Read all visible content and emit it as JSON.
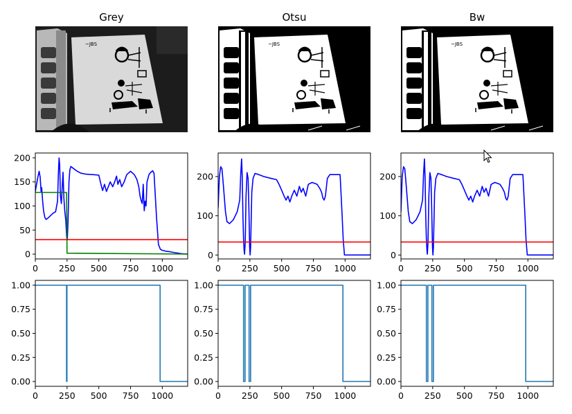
{
  "image_panels": [
    {
      "title": "Grey",
      "variant": "grey"
    },
    {
      "title": "Otsu",
      "variant": "binary"
    },
    {
      "title": "Bw",
      "variant": "binary"
    }
  ],
  "colors": {
    "profile": "#0000ff",
    "threshold": "#ff0000",
    "green_profile": "#008000",
    "mask": "#1f77b4"
  },
  "chart_data": [
    {
      "type": "line",
      "panel": "Grey profile",
      "xlim": [
        0,
        1200
      ],
      "ylim": [
        -10,
        210
      ],
      "xticks": [
        0,
        250,
        500,
        750,
        1000
      ],
      "yticks": [
        0,
        50,
        100,
        150,
        200
      ],
      "series": [
        {
          "color": "#0000ff",
          "points": [
            [
              0,
              130
            ],
            [
              10,
              145
            ],
            [
              20,
              160
            ],
            [
              30,
              172
            ],
            [
              38,
              160
            ],
            [
              45,
              130
            ],
            [
              50,
              138
            ],
            [
              58,
              110
            ],
            [
              65,
              90
            ],
            [
              75,
              76
            ],
            [
              85,
              72
            ],
            [
              100,
              75
            ],
            [
              120,
              80
            ],
            [
              140,
              85
            ],
            [
              160,
              88
            ],
            [
              175,
              110
            ],
            [
              182,
              170
            ],
            [
              187,
              200
            ],
            [
              192,
              185
            ],
            [
              198,
              120
            ],
            [
              205,
              105
            ],
            [
              212,
              140
            ],
            [
              218,
              170
            ],
            [
              225,
              115
            ],
            [
              232,
              90
            ],
            [
              240,
              70
            ],
            [
              247,
              35
            ],
            [
              252,
              30
            ],
            [
              258,
              70
            ],
            [
              265,
              150
            ],
            [
              272,
              175
            ],
            [
              280,
              182
            ],
            [
              300,
              178
            ],
            [
              330,
              172
            ],
            [
              360,
              168
            ],
            [
              400,
              166
            ],
            [
              460,
              165
            ],
            [
              500,
              164
            ],
            [
              520,
              142
            ],
            [
              530,
              132
            ],
            [
              545,
              145
            ],
            [
              560,
              130
            ],
            [
              575,
              140
            ],
            [
              590,
              150
            ],
            [
              610,
              140
            ],
            [
              625,
              150
            ],
            [
              640,
              162
            ],
            [
              650,
              145
            ],
            [
              665,
              155
            ],
            [
              680,
              140
            ],
            [
              700,
              150
            ],
            [
              720,
              165
            ],
            [
              750,
              172
            ],
            [
              780,
              165
            ],
            [
              800,
              155
            ],
            [
              815,
              140
            ],
            [
              825,
              120
            ],
            [
              835,
              110
            ],
            [
              842,
              105
            ],
            [
              850,
              145
            ],
            [
              858,
              90
            ],
            [
              865,
              110
            ],
            [
              872,
              100
            ],
            [
              880,
              150
            ],
            [
              895,
              165
            ],
            [
              910,
              170
            ],
            [
              925,
              173
            ],
            [
              935,
              168
            ],
            [
              945,
              120
            ],
            [
              955,
              75
            ],
            [
              970,
              20
            ],
            [
              985,
              10
            ],
            [
              1000,
              8
            ],
            [
              1030,
              6
            ],
            [
              1060,
              5
            ],
            [
              1100,
              3
            ],
            [
              1150,
              1
            ],
            [
              1200,
              0
            ]
          ]
        },
        {
          "color": "#008000",
          "points": [
            [
              0,
              128
            ],
            [
              246,
              128
            ],
            [
              250,
              2
            ],
            [
              1200,
              0
            ]
          ]
        },
        {
          "color": "#ff0000",
          "points": [
            [
              0,
              30
            ],
            [
              1200,
              30
            ]
          ]
        }
      ]
    },
    {
      "type": "line",
      "panel": "Otsu profile",
      "xlim": [
        0,
        1200
      ],
      "ylim": [
        -10,
        260
      ],
      "xticks": [
        0,
        250,
        500,
        750,
        1000
      ],
      "yticks": [
        0,
        100,
        200
      ],
      "series": [
        {
          "color": "#0000ff",
          "points": [
            [
              0,
              120
            ],
            [
              10,
              200
            ],
            [
              20,
              225
            ],
            [
              30,
              220
            ],
            [
              38,
              190
            ],
            [
              48,
              150
            ],
            [
              58,
              110
            ],
            [
              70,
              85
            ],
            [
              90,
              80
            ],
            [
              120,
              90
            ],
            [
              150,
              110
            ],
            [
              170,
              140
            ],
            [
              178,
              205
            ],
            [
              185,
              245
            ],
            [
              190,
              200
            ],
            [
              195,
              100
            ],
            [
              200,
              40
            ],
            [
              205,
              10
            ],
            [
              208,
              2
            ],
            [
              213,
              30
            ],
            [
              220,
              150
            ],
            [
              228,
              210
            ],
            [
              236,
              195
            ],
            [
              242,
              120
            ],
            [
              248,
              20
            ],
            [
              252,
              0
            ],
            [
              256,
              20
            ],
            [
              265,
              160
            ],
            [
              275,
              195
            ],
            [
              290,
              208
            ],
            [
              320,
              205
            ],
            [
              360,
              200
            ],
            [
              420,
              195
            ],
            [
              460,
              192
            ],
            [
              480,
              180
            ],
            [
              500,
              165
            ],
            [
              520,
              150
            ],
            [
              535,
              140
            ],
            [
              550,
              150
            ],
            [
              565,
              135
            ],
            [
              580,
              150
            ],
            [
              600,
              165
            ],
            [
              620,
              150
            ],
            [
              640,
              175
            ],
            [
              655,
              160
            ],
            [
              670,
              170
            ],
            [
              690,
              150
            ],
            [
              710,
              180
            ],
            [
              740,
              185
            ],
            [
              780,
              180
            ],
            [
              800,
              170
            ],
            [
              815,
              160
            ],
            [
              825,
              145
            ],
            [
              835,
              140
            ],
            [
              845,
              150
            ],
            [
              860,
              195
            ],
            [
              880,
              205
            ],
            [
              920,
              205
            ],
            [
              960,
              205
            ],
            [
              962,
              195
            ],
            [
              975,
              110
            ],
            [
              985,
              40
            ],
            [
              995,
              0
            ],
            [
              1200,
              0
            ]
          ]
        },
        {
          "color": "#ff0000",
          "points": [
            [
              0,
              33
            ],
            [
              1200,
              33
            ]
          ]
        }
      ]
    },
    {
      "type": "line",
      "panel": "Bw profile",
      "xlim": [
        0,
        1200
      ],
      "ylim": [
        -10,
        260
      ],
      "xticks": [
        0,
        250,
        500,
        750,
        1000
      ],
      "yticks": [
        0,
        100,
        200
      ],
      "series": [
        {
          "color": "#0000ff",
          "points": [
            [
              0,
              110
            ],
            [
              10,
              200
            ],
            [
              20,
              225
            ],
            [
              30,
              220
            ],
            [
              38,
              190
            ],
            [
              48,
              150
            ],
            [
              58,
              110
            ],
            [
              70,
              85
            ],
            [
              90,
              80
            ],
            [
              120,
              90
            ],
            [
              150,
              110
            ],
            [
              170,
              140
            ],
            [
              178,
              205
            ],
            [
              185,
              245
            ],
            [
              190,
              200
            ],
            [
              195,
              100
            ],
            [
              200,
              40
            ],
            [
              205,
              10
            ],
            [
              208,
              2
            ],
            [
              213,
              30
            ],
            [
              220,
              150
            ],
            [
              228,
              210
            ],
            [
              236,
              195
            ],
            [
              242,
              120
            ],
            [
              248,
              20
            ],
            [
              252,
              0
            ],
            [
              256,
              20
            ],
            [
              265,
              160
            ],
            [
              275,
              195
            ],
            [
              290,
              208
            ],
            [
              320,
              205
            ],
            [
              360,
              200
            ],
            [
              420,
              195
            ],
            [
              460,
              192
            ],
            [
              480,
              180
            ],
            [
              500,
              165
            ],
            [
              520,
              150
            ],
            [
              535,
              140
            ],
            [
              550,
              150
            ],
            [
              565,
              135
            ],
            [
              580,
              150
            ],
            [
              600,
              165
            ],
            [
              620,
              150
            ],
            [
              640,
              175
            ],
            [
              655,
              160
            ],
            [
              670,
              170
            ],
            [
              690,
              150
            ],
            [
              710,
              180
            ],
            [
              740,
              185
            ],
            [
              780,
              180
            ],
            [
              800,
              170
            ],
            [
              815,
              160
            ],
            [
              825,
              145
            ],
            [
              835,
              140
            ],
            [
              845,
              150
            ],
            [
              860,
              195
            ],
            [
              880,
              205
            ],
            [
              920,
              205
            ],
            [
              960,
              205
            ],
            [
              962,
              195
            ],
            [
              975,
              110
            ],
            [
              985,
              40
            ],
            [
              995,
              0
            ],
            [
              1200,
              0
            ]
          ]
        },
        {
          "color": "#ff0000",
          "points": [
            [
              0,
              33
            ],
            [
              1200,
              33
            ]
          ]
        }
      ]
    },
    {
      "type": "line",
      "panel": "Grey mask",
      "xlim": [
        0,
        1200
      ],
      "ylim": [
        -0.05,
        1.05
      ],
      "xticks": [
        0,
        250,
        500,
        750,
        1000
      ],
      "yticks": [
        0.0,
        0.25,
        0.5,
        0.75,
        1.0
      ],
      "series": [
        {
          "color": "#1f77b4",
          "points": [
            [
              0,
              1
            ],
            [
              246,
              1
            ],
            [
              246,
              0
            ],
            [
              249,
              0
            ],
            [
              249,
              1
            ],
            [
              983,
              1
            ],
            [
              983,
              0
            ],
            [
              1200,
              0
            ]
          ]
        }
      ]
    },
    {
      "type": "line",
      "panel": "Otsu mask",
      "xlim": [
        0,
        1200
      ],
      "ylim": [
        -0.05,
        1.05
      ],
      "xticks": [
        0,
        250,
        500,
        750,
        1000
      ],
      "yticks": [
        0.0,
        0.25,
        0.5,
        0.75,
        1.0
      ],
      "series": [
        {
          "color": "#1f77b4",
          "points": [
            [
              0,
              1
            ],
            [
              200,
              1
            ],
            [
              200,
              0
            ],
            [
              212,
              0
            ],
            [
              212,
              1
            ],
            [
              244,
              1
            ],
            [
              244,
              0
            ],
            [
              256,
              0
            ],
            [
              256,
              1
            ],
            [
              983,
              1
            ],
            [
              983,
              0
            ],
            [
              1200,
              0
            ]
          ]
        }
      ]
    },
    {
      "type": "line",
      "panel": "Bw mask",
      "xlim": [
        0,
        1200
      ],
      "ylim": [
        -0.05,
        1.05
      ],
      "xticks": [
        0,
        250,
        500,
        750,
        1000
      ],
      "yticks": [
        0.0,
        0.25,
        0.5,
        0.75,
        1.0
      ],
      "series": [
        {
          "color": "#1f77b4",
          "points": [
            [
              0,
              1
            ],
            [
              200,
              1
            ],
            [
              200,
              0
            ],
            [
              212,
              0
            ],
            [
              212,
              1
            ],
            [
              244,
              1
            ],
            [
              244,
              0
            ],
            [
              256,
              0
            ],
            [
              256,
              1
            ],
            [
              983,
              1
            ],
            [
              983,
              0
            ],
            [
              1200,
              0
            ]
          ]
        }
      ]
    }
  ]
}
